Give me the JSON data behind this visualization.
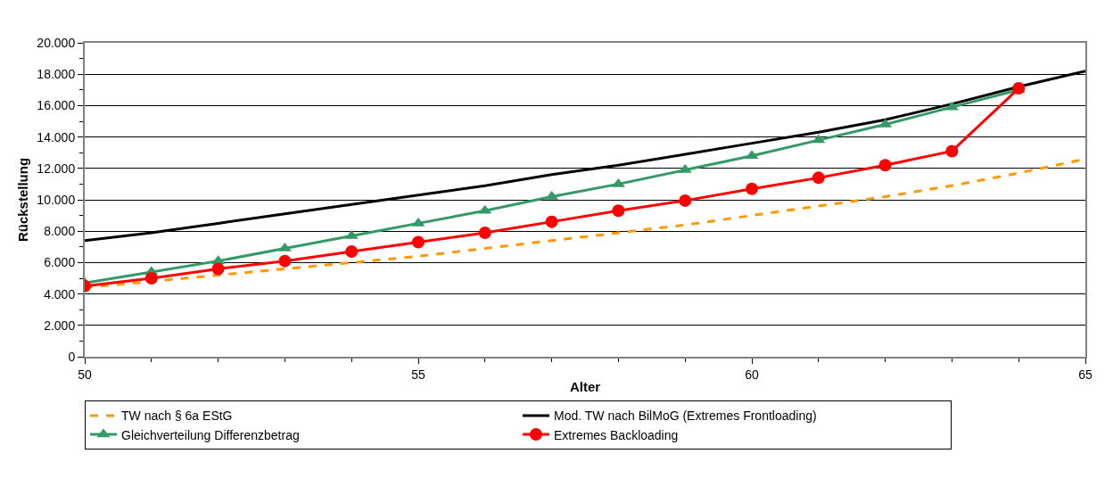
{
  "chart_data": {
    "type": "line",
    "xlabel": "Alter",
    "ylabel": "Rückstellung",
    "xlim": [
      50,
      65
    ],
    "xticks": [
      50,
      55,
      60,
      65
    ],
    "ylim": [
      0,
      20000
    ],
    "yticks": [
      {
        "value": 0,
        "label": "0"
      },
      {
        "value": 2000,
        "label": "2.000"
      },
      {
        "value": 4000,
        "label": "4.000"
      },
      {
        "value": 6000,
        "label": "6.000"
      },
      {
        "value": 8000,
        "label": "8.000"
      },
      {
        "value": 10000,
        "label": "10.000"
      },
      {
        "value": 12000,
        "label": "12.000"
      },
      {
        "value": 14000,
        "label": "14.000"
      },
      {
        "value": 16000,
        "label": "16.000"
      },
      {
        "value": 18000,
        "label": "18.000"
      },
      {
        "value": 20000,
        "label": "20.000"
      }
    ],
    "grid": "y",
    "legend": "bottom",
    "series": [
      {
        "name": "TW nach § 6a EStG",
        "color": "#ff9900",
        "line_style": "dashed",
        "marker": "none",
        "x": [
          50,
          51,
          52,
          53,
          54,
          55,
          56,
          57,
          58,
          59,
          60,
          61,
          62,
          63,
          64,
          65
        ],
        "values": [
          4400,
          4800,
          5200,
          5600,
          6000,
          6400,
          6900,
          7400,
          7900,
          8400,
          9000,
          9600,
          10200,
          10900,
          11700,
          12600
        ]
      },
      {
        "name": "Mod. TW nach BilMoG (Extremes Frontloading)",
        "color": "#000000",
        "line_style": "solid",
        "marker": "none",
        "x": [
          50,
          51,
          52,
          53,
          54,
          55,
          56,
          57,
          58,
          59,
          60,
          61,
          62,
          63,
          64,
          65
        ],
        "values": [
          7400,
          7900,
          8500,
          9100,
          9700,
          10300,
          10900,
          11600,
          12200,
          12900,
          13600,
          14300,
          15100,
          16100,
          17200,
          18200
        ]
      },
      {
        "name": "Gleichverteilung Differenzbetrag",
        "color": "#339966",
        "line_style": "solid",
        "marker": "triangle",
        "x": [
          50,
          51,
          52,
          53,
          54,
          55,
          56,
          57,
          58,
          59,
          60,
          61,
          62,
          63,
          64
        ],
        "values": [
          4700,
          5400,
          6100,
          6900,
          7700,
          8500,
          9300,
          10200,
          11000,
          11900,
          12800,
          13800,
          14800,
          15900,
          17000
        ]
      },
      {
        "name": "Extremes Backloading",
        "color": "#ff0000",
        "line_style": "solid",
        "marker": "circle",
        "x": [
          50,
          51,
          52,
          53,
          54,
          55,
          56,
          57,
          58,
          59,
          60,
          61,
          62,
          63,
          64
        ],
        "values": [
          4500,
          5000,
          5600,
          6100,
          6700,
          7300,
          7900,
          8600,
          9300,
          9950,
          10700,
          11400,
          12200,
          13100,
          17100
        ]
      }
    ]
  }
}
